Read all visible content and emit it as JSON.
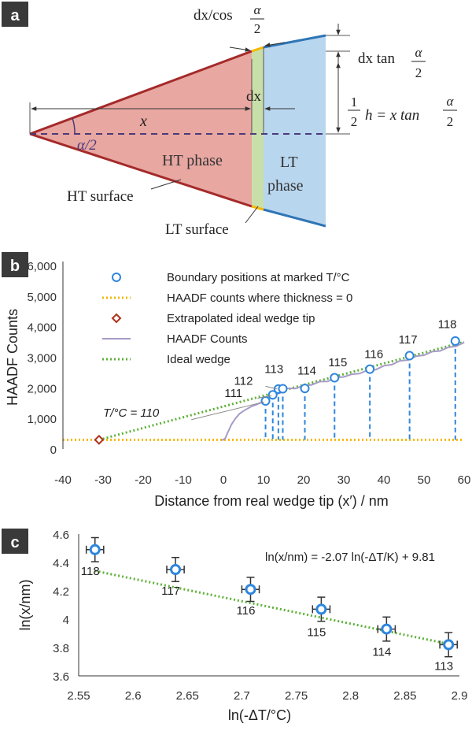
{
  "panels": {
    "a": {
      "tag": "a",
      "labels": {
        "dx_cos": "dx/cos α/2",
        "dx_cos_left": "dx/cos",
        "dx_cos_num": "α",
        "dx_cos_den": "2",
        "dx_tan": "dx tan α/2",
        "dx_tan_left": "dx tan",
        "dx_tan_num": "α",
        "dx_tan_den": "2",
        "half_h": "1/2 h = x tan α/2",
        "half_h_num": "1",
        "half_h_den": "2",
        "half_h_mid": "h = x tan",
        "half_h_rnum": "α",
        "half_h_rden": "2",
        "dx": "dx",
        "x": "x",
        "alpha_half": "α/2",
        "ht_phase": "HT phase",
        "lt_phase_1": "LT",
        "lt_phase_2": "phase",
        "ht_surface": "HT surface",
        "lt_surface": "LT surface"
      },
      "colors": {
        "ht_fill": "#e8a7a1",
        "ht_edge": "#a52a2a",
        "lt_fill": "#b9d6ef",
        "lt_edge": "#2e75b6",
        "boundary_fill": "#c9dfa9",
        "boundary_edge": "#f5b800",
        "centerline": "#4b3a7a"
      }
    },
    "b": {
      "tag": "b"
    },
    "c": {
      "tag": "c"
    }
  },
  "chart_data": [
    {
      "type": "line",
      "panel": "b",
      "xlabel": "Distance from real wedge tip (x′) / nm",
      "ylabel": "HAADF Counts",
      "xlim": [
        -40,
        60
      ],
      "ylim": [
        0,
        6000
      ],
      "xticks": [
        "-40",
        "-30",
        "-20",
        "-10",
        "0",
        "10",
        "20",
        "30",
        "40",
        "50",
        "60"
      ],
      "yticks": [
        "0",
        "1,000",
        "2,000",
        "3,000",
        "4,000",
        "5,000",
        "6,000"
      ],
      "grid": false,
      "legend_position": "top",
      "legend": [
        {
          "label": "Boundary positions at marked T/°C",
          "marker": "circle",
          "color": "#2e86de"
        },
        {
          "label": "HAADF counts where thickness = 0",
          "marker": "dotted-line",
          "color": "#f5b800"
        },
        {
          "label": "Extrapolated ideal wedge tip",
          "marker": "diamond",
          "color": "#b0301a"
        },
        {
          "label": "HAADF Counts",
          "marker": "line",
          "color": "#a79bc7"
        },
        {
          "label": "Ideal wedge",
          "marker": "dotted-line",
          "color": "#5fb13a"
        }
      ],
      "series": [
        {
          "name": "Boundary positions at marked T/°C",
          "points": [
            {
              "x": 10.5,
              "y": 1570,
              "label": "111"
            },
            {
              "x": 12.3,
              "y": 1770,
              "label": "112"
            },
            {
              "x": 13.7,
              "y": 1960,
              "label": "113"
            },
            {
              "x": 14.8,
              "y": 1970,
              "label": "113"
            },
            {
              "x": 20.3,
              "y": 1980,
              "label": "114"
            },
            {
              "x": 27.7,
              "y": 2330,
              "label": "115"
            },
            {
              "x": 36.5,
              "y": 2610,
              "label": "116"
            },
            {
              "x": 46.4,
              "y": 3050,
              "label": "117"
            },
            {
              "x": 57.8,
              "y": 3530,
              "label": "118"
            }
          ]
        },
        {
          "name": "HAADF counts where thickness = 0",
          "y": 300
        },
        {
          "name": "Extrapolated ideal wedge tip",
          "x": -31,
          "y": 300
        },
        {
          "name": "Ideal wedge",
          "x": [
            -31,
            60
          ],
          "y": [
            300,
            3500
          ]
        },
        {
          "name": "HAADF Counts",
          "x": [
            -0.5,
            0,
            0.5,
            1,
            1.5,
            2,
            3,
            4,
            5,
            6,
            7,
            8,
            9,
            10,
            12,
            14,
            16,
            18,
            20,
            22,
            24,
            26,
            28,
            30,
            32,
            34,
            36,
            38,
            40,
            42,
            44,
            46,
            48,
            50,
            52,
            54,
            56,
            58,
            60
          ],
          "y": [
            300,
            300,
            360,
            520,
            650,
            800,
            1000,
            1150,
            1240,
            1320,
            1390,
            1440,
            1500,
            1560,
            1700,
            1850,
            1960,
            2000,
            2050,
            2120,
            2180,
            2230,
            2310,
            2380,
            2420,
            2490,
            2560,
            2620,
            2700,
            2780,
            2860,
            2930,
            3010,
            3090,
            3160,
            3230,
            3300,
            3380,
            3460
          ]
        }
      ],
      "annotations": [
        {
          "text": "T/°C = 110",
          "x": -23,
          "y": 1050
        },
        {
          "text": "111",
          "x": 2.5,
          "y": 1700
        },
        {
          "text": "112",
          "x": 5,
          "y": 2100
        },
        {
          "text": "113",
          "x": 12.6,
          "y": 2480
        },
        {
          "text": "114",
          "x": 20.8,
          "y": 2430
        },
        {
          "text": "115",
          "x": 28.5,
          "y": 2700
        },
        {
          "text": "116",
          "x": 37.5,
          "y": 2980
        },
        {
          "text": "117",
          "x": 46,
          "y": 3450
        },
        {
          "text": "118",
          "x": 55.8,
          "y": 3950
        }
      ]
    },
    {
      "type": "scatter",
      "panel": "c",
      "xlabel": "ln(-ΔT/°C)",
      "ylabel": "ln(x/nm)",
      "xlim": [
        2.55,
        2.9
      ],
      "ylim": [
        3.6,
        4.6
      ],
      "xticks": [
        "2.55",
        "2.6",
        "2.65",
        "2.7",
        "2.75",
        "2.8",
        "2.85",
        "2.9"
      ],
      "yticks": [
        "3.6",
        "3.8",
        "4",
        "4.2",
        "4.4",
        "4.6"
      ],
      "grid": false,
      "equation": "ln(x/nm) = -2.07 ln(-ΔT/K) + 9.81",
      "fit": {
        "slope": -2.07,
        "intercept": 9.81
      },
      "points": [
        {
          "x": 2.565,
          "y": 4.49,
          "xerr": 0.008,
          "yerr": 0.085,
          "label": "118"
        },
        {
          "x": 2.639,
          "y": 4.35,
          "xerr": 0.008,
          "yerr": 0.085,
          "label": "117"
        },
        {
          "x": 2.708,
          "y": 4.21,
          "xerr": 0.008,
          "yerr": 0.085,
          "label": "116"
        },
        {
          "x": 2.773,
          "y": 4.07,
          "xerr": 0.008,
          "yerr": 0.085,
          "label": "115"
        },
        {
          "x": 2.833,
          "y": 3.93,
          "xerr": 0.008,
          "yerr": 0.085,
          "label": "114"
        },
        {
          "x": 2.89,
          "y": 3.82,
          "xerr": 0.008,
          "yerr": 0.085,
          "label": "113"
        }
      ]
    }
  ]
}
